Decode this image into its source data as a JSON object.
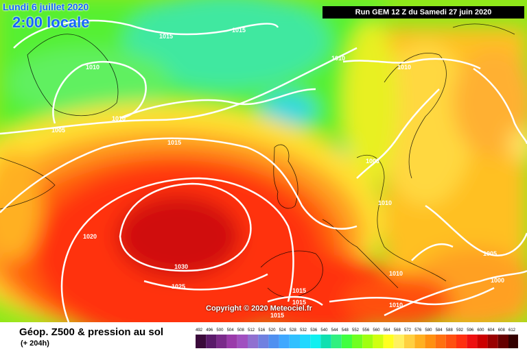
{
  "header": {
    "date": "Lundi 6 juillet 2020",
    "local_time": "2:00 locale",
    "run": "Run GEM 12 Z du Samedi 27 juin 2020"
  },
  "pressure_labels": [
    "1015",
    "1015",
    "1010",
    "1010",
    "1010",
    "1010",
    "1005",
    "1015",
    "1005",
    "1010",
    "1020",
    "1030",
    "1025",
    "1015",
    "1015",
    "1015",
    "1010",
    "1010",
    "1005",
    "1000"
  ],
  "copyright": "Copyright © 2020 Meteociel.fr",
  "footer": {
    "title": "Géop. Z500 & pression au sol",
    "lead": "(+ 204h)"
  },
  "scale": {
    "ticks": [
      "492",
      "496",
      "500",
      "504",
      "508",
      "512",
      "516",
      "520",
      "524",
      "528",
      "532",
      "536",
      "540",
      "544",
      "548",
      "552",
      "556",
      "560",
      "564",
      "568",
      "572",
      "576",
      "580",
      "584",
      "588",
      "592",
      "596",
      "600",
      "604",
      "608",
      "612"
    ],
    "colors": [
      "#3a0a3a",
      "#5a1a6a",
      "#7a2a8a",
      "#9a3aaa",
      "#a050c0",
      "#9070d0",
      "#7080e0",
      "#5090f0",
      "#40a8ff",
      "#30c0ff",
      "#20d8ff",
      "#10f0f0",
      "#10e0b0",
      "#30f080",
      "#40ff40",
      "#70ff20",
      "#a0ff10",
      "#d0ff10",
      "#ffff20",
      "#fff060",
      "#ffd040",
      "#ffb020",
      "#ff9010",
      "#ff7010",
      "#ff5010",
      "#ff3010",
      "#ee1010",
      "#cc0000",
      "#990000",
      "#660000",
      "#330000"
    ]
  }
}
